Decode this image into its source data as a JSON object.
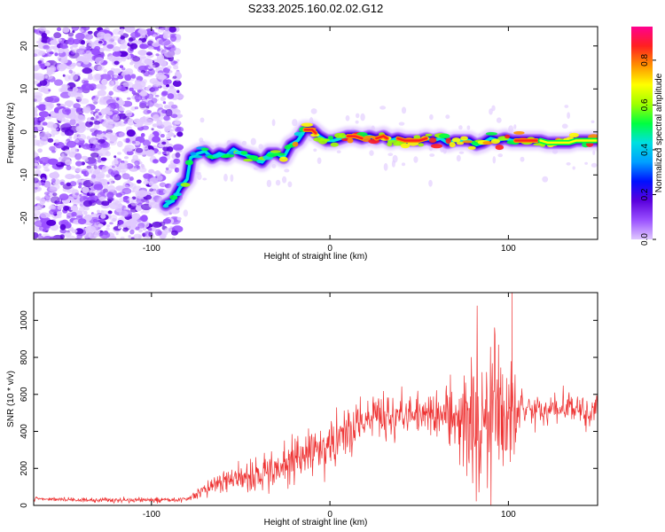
{
  "title": "S233.2025.160.02.02.G12",
  "colors": {
    "snr_line": "#ee3333",
    "spectrogram_palette": [
      "#e0c8ff",
      "#9a50ff",
      "#5a00dd",
      "#0010ff",
      "#00a0ff",
      "#00e0e0",
      "#00ff40",
      "#a0ff00",
      "#ffff00",
      "#ff9000",
      "#ff2020",
      "#ff0090"
    ],
    "frame": "#000000"
  },
  "chart_data": [
    {
      "type": "heatmap",
      "xlabel": "Height of straight line (km)",
      "ylabel": "Frequency (Hz)",
      "xlim": [
        -166,
        150
      ],
      "ylim": [
        -25,
        24.5
      ],
      "xticks": [
        -100,
        0,
        100
      ],
      "yticks": [
        -20,
        -10,
        0,
        10,
        20
      ],
      "colorbar": {
        "label": "Normalized spectral amplitude",
        "range": [
          0,
          0.95
        ],
        "ticks": [
          0.0,
          0.2,
          0.4,
          0.6,
          0.8
        ]
      },
      "ridge": {
        "x": [
          -92,
          -88,
          -84,
          -80,
          -78,
          -74,
          -70,
          -66,
          -62,
          -58,
          -54,
          -50,
          -46,
          -42,
          -38,
          -34,
          -30,
          -26,
          -22,
          -18,
          -14,
          -10,
          -6,
          -2,
          2,
          6,
          10,
          14,
          18,
          22,
          26,
          30,
          34,
          38,
          42,
          46,
          50,
          54,
          58,
          62,
          66,
          70,
          74,
          78,
          82,
          86,
          90,
          94,
          98,
          102,
          106,
          110,
          114,
          118,
          122,
          126,
          130,
          134,
          138,
          142,
          146,
          150
        ],
        "y": [
          -17,
          -16,
          -13,
          -11,
          -6,
          -5,
          -4.5,
          -6,
          -5,
          -5.5,
          -4,
          -5,
          -5.5,
          -6,
          -7,
          -5,
          -5,
          -6,
          -3,
          -2,
          0.5,
          0.5,
          -1,
          -2,
          -2,
          -1.5,
          -1,
          -1,
          -1.5,
          -1,
          -1.5,
          -1,
          -2,
          -1.5,
          -2,
          -2,
          -2,
          -1.5,
          -2,
          -1.5,
          -2.5,
          -2,
          -2,
          -2,
          -3,
          -2.5,
          -1.5,
          -2,
          -1.5,
          -2,
          -2,
          -2,
          -2,
          -2,
          -2.5,
          -2.5,
          -2.5,
          -2.5,
          -2,
          -2,
          -2,
          -2
        ]
      }
    },
    {
      "type": "line",
      "xlabel": "Height of straight line (km)",
      "ylabel": "SNR (10 * v/v)",
      "xlim": [
        -166,
        150
      ],
      "ylim": [
        0,
        1150
      ],
      "xticks": [
        -100,
        0,
        100
      ],
      "yticks": [
        0,
        200,
        400,
        600,
        800,
        1000
      ],
      "envelope": {
        "x": [
          -166,
          -140,
          -120,
          -100,
          -85,
          -80,
          -75,
          -70,
          -65,
          -60,
          -55,
          -50,
          -45,
          -40,
          -35,
          -30,
          -25,
          -20,
          -15,
          -10,
          -5,
          0,
          5,
          10,
          15,
          20,
          25,
          30,
          35,
          40,
          45,
          50,
          55,
          60,
          65,
          70,
          75,
          80,
          85,
          90,
          95,
          100,
          105,
          110,
          115,
          120,
          125,
          130,
          135,
          140,
          145,
          150
        ],
        "y": [
          35,
          30,
          28,
          28,
          30,
          35,
          60,
          90,
          110,
          130,
          150,
          140,
          130,
          160,
          180,
          190,
          220,
          250,
          260,
          270,
          300,
          320,
          360,
          400,
          430,
          460,
          470,
          480,
          470,
          490,
          480,
          490,
          500,
          480,
          490,
          500,
          480,
          470,
          460,
          470,
          480,
          500,
          520,
          530,
          520,
          510,
          520,
          530,
          540,
          520,
          510,
          530
        ]
      },
      "noise": {
        "x": [
          -166,
          -80,
          -70,
          -60,
          -50,
          -40,
          -30,
          -20,
          -10,
          0,
          10,
          20,
          30,
          40,
          50,
          60,
          70,
          75,
          80,
          85,
          90,
          95,
          100,
          105,
          110,
          120,
          130,
          140,
          150
        ],
        "y": [
          10,
          12,
          40,
          60,
          60,
          70,
          90,
          110,
          120,
          110,
          120,
          120,
          110,
          100,
          90,
          100,
          150,
          250,
          300,
          320,
          330,
          300,
          280,
          120,
          90,
          70,
          70,
          70,
          70
        ]
      },
      "peak": {
        "x": 102,
        "y": 1150
      }
    }
  ]
}
